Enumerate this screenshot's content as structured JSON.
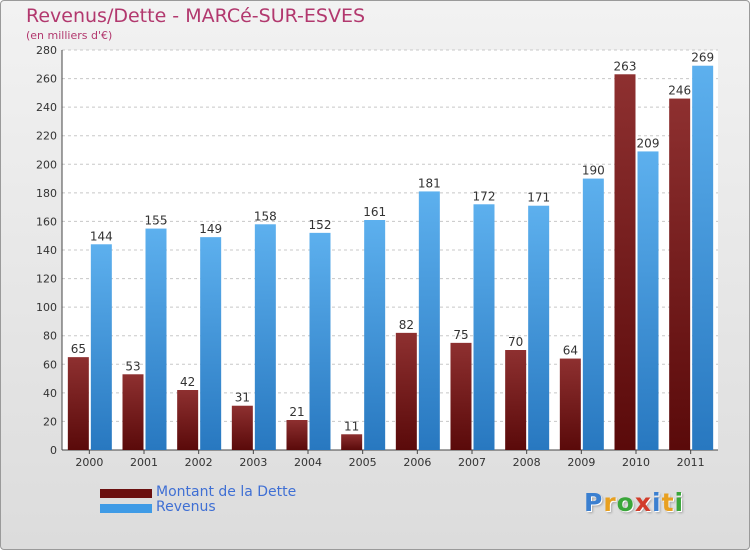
{
  "title": "Revenus/Dette - MARCé-SUR-ESVES",
  "subtitle": "(en milliers d'€)",
  "colors": {
    "dette_dark": "#5a0a0a",
    "dette_light": "#8e3030",
    "revenus_dark": "#2878c0",
    "revenus_light": "#5db0ee",
    "title": "#b2386e",
    "legend_text": "#3f6fd4"
  },
  "legend": {
    "items": [
      {
        "label": "Montant de la Dette",
        "color": "#6b1010"
      },
      {
        "label": "Revenus",
        "color": "#3f9be6"
      }
    ]
  },
  "logo": {
    "letters": [
      "P",
      "r",
      "o",
      "x",
      "i",
      "t",
      "i"
    ],
    "colors": [
      "#3a7fd0",
      "#e8a020",
      "#3aa63a",
      "#d23c2a",
      "#3a7fd0",
      "#e8a020",
      "#3aa63a"
    ]
  },
  "chart_data": {
    "type": "bar",
    "title": "Revenus/Dette - MARCé-SUR-ESVES",
    "subtitle": "(en milliers d'€)",
    "xlabel": "",
    "ylabel": "",
    "ylim": [
      0,
      280
    ],
    "yticks": [
      0,
      20,
      40,
      60,
      80,
      100,
      120,
      140,
      160,
      180,
      200,
      220,
      240,
      260,
      280
    ],
    "grid": true,
    "legend_position": "bottom-left",
    "categories": [
      "2000",
      "2001",
      "2002",
      "2003",
      "2004",
      "2005",
      "2006",
      "2007",
      "2008",
      "2009",
      "2010",
      "2011"
    ],
    "series": [
      {
        "name": "Montant de la Dette",
        "values": [
          65,
          53,
          42,
          31,
          21,
          11,
          82,
          75,
          70,
          64,
          263,
          246
        ]
      },
      {
        "name": "Revenus",
        "values": [
          144,
          155,
          149,
          158,
          152,
          161,
          181,
          172,
          171,
          190,
          209,
          269
        ]
      }
    ]
  }
}
